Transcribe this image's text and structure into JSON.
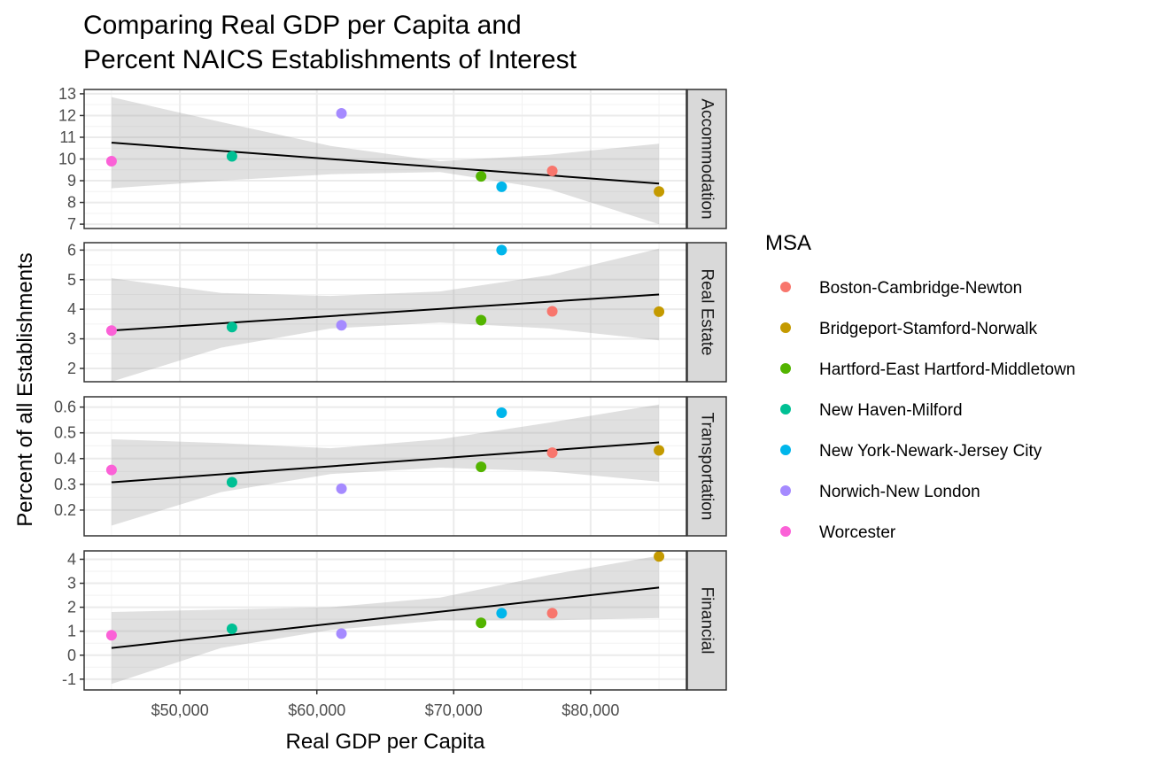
{
  "chart_data": {
    "type": "scatter",
    "title_lines": [
      "Comparing Real GDP per Capita and",
      "Percent NAICS Establishments of Interest"
    ],
    "xlabel": "Real GDP per Capita",
    "ylabel": "Percent of all Establishments",
    "x_ticks": [
      50000,
      60000,
      70000,
      80000
    ],
    "x_tick_labels": [
      "$50,000",
      "$60,000",
      "$70,000",
      "$80,000"
    ],
    "xlim": [
      43000,
      87000
    ],
    "grid": true,
    "legend_position": "right",
    "legend": {
      "title": "MSA",
      "entries": [
        {
          "name": "Boston-Cambridge-Newton",
          "color": "#F8766D"
        },
        {
          "name": "Bridgeport-Stamford-Norwalk",
          "color": "#C49A00"
        },
        {
          "name": "Hartford-East Hartford-Middletown",
          "color": "#53B400"
        },
        {
          "name": "New Haven-Milford",
          "color": "#00C094"
        },
        {
          "name": "New York-Newark-Jersey City",
          "color": "#00B6EB"
        },
        {
          "name": "Norwich-New London",
          "color": "#A58AFF"
        },
        {
          "name": "Worcester",
          "color": "#FB61D7"
        }
      ]
    },
    "x_values": [
      77200,
      85000,
      72000,
      53800,
      73500,
      61800,
      45000
    ],
    "panels": [
      {
        "strip": "Accommodation",
        "ylim": [
          6.8,
          13.2
        ],
        "y_ticks": [
          7,
          8,
          9,
          10,
          11,
          12,
          13
        ],
        "y_tick_labels": [
          "7",
          "8",
          "9",
          "10",
          "11",
          "12",
          "13"
        ],
        "values": [
          9.45,
          8.5,
          9.2,
          10.12,
          8.72,
          12.1,
          9.9
        ],
        "fit": [
          10.75,
          8.87
        ],
        "band_lower": [
          8.65,
          9.0,
          9.3,
          9.4,
          8.6,
          7.0
        ],
        "band_upper": [
          12.85,
          11.7,
          10.6,
          9.9,
          10.2,
          10.7
        ]
      },
      {
        "strip": "Real Estate",
        "ylim": [
          1.55,
          6.25
        ],
        "y_ticks": [
          2,
          3,
          4,
          5,
          6
        ],
        "y_tick_labels": [
          "2",
          "3",
          "4",
          "5",
          "6"
        ],
        "values": [
          3.93,
          3.92,
          3.63,
          3.4,
          6.0,
          3.46,
          3.28
        ],
        "fit": [
          3.28,
          4.5
        ],
        "band_lower": [
          1.55,
          2.7,
          3.35,
          3.55,
          3.35,
          2.95
        ],
        "band_upper": [
          5.05,
          4.55,
          4.45,
          4.6,
          5.15,
          6.05
        ]
      },
      {
        "strip": "Transportation",
        "ylim": [
          0.1,
          0.64
        ],
        "y_ticks": [
          0.2,
          0.3,
          0.4,
          0.5,
          0.6
        ],
        "y_tick_labels": [
          "0.2",
          "0.3",
          "0.4",
          "0.5",
          "0.6"
        ],
        "values": [
          0.423,
          0.432,
          0.368,
          0.308,
          0.578,
          0.283,
          0.356
        ],
        "fit": [
          0.308,
          0.463
        ],
        "band_lower": [
          0.14,
          0.27,
          0.34,
          0.365,
          0.35,
          0.31
        ],
        "band_upper": [
          0.475,
          0.46,
          0.44,
          0.475,
          0.54,
          0.61
        ]
      },
      {
        "strip": "Financial",
        "ylim": [
          -1.45,
          4.35
        ],
        "y_ticks": [
          -1,
          0,
          1,
          2,
          3,
          4
        ],
        "y_tick_labels": [
          "-1",
          "0",
          "1",
          "2",
          "3",
          "4"
        ],
        "values": [
          1.75,
          4.12,
          1.35,
          1.1,
          1.75,
          0.9,
          0.83
        ],
        "fit": [
          0.3,
          2.82
        ],
        "band_lower": [
          -1.2,
          0.3,
          1.05,
          1.45,
          1.45,
          1.55
        ],
        "band_upper": [
          1.8,
          1.9,
          2.0,
          2.4,
          3.35,
          4.15
        ]
      }
    ]
  }
}
